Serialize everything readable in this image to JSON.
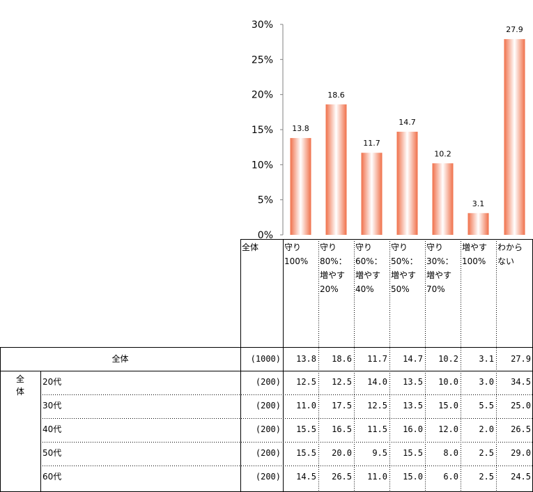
{
  "chart_data": {
    "type": "bar",
    "categories": [
      "守り\n100%",
      "守り\n80%：\n増やす\n20%",
      "守り\n60%：\n増やす\n40%",
      "守り\n50%：\n増やす\n50%",
      "守り\n30%：\n増やす\n70%",
      "増やす\n100%",
      "わから\nない"
    ],
    "values": [
      13.8,
      18.6,
      11.7,
      14.7,
      10.2,
      3.1,
      27.9
    ],
    "ylim": [
      0,
      30
    ],
    "yticks": [
      "0%",
      "5%",
      "10%",
      "15%",
      "20%",
      "25%",
      "30%"
    ],
    "value_labels": [
      "13.8",
      "18.6",
      "11.7",
      "14.7",
      "10.2",
      "3.1",
      "27.9"
    ],
    "bar_color": "#f0704a",
    "grid": false
  },
  "table": {
    "header_total": "全体",
    "group_label": "全\n体",
    "rows": [
      {
        "label": "全体",
        "n": "(1000)",
        "values": [
          "13.8",
          "18.6",
          "11.7",
          "14.7",
          "10.2",
          "3.1",
          "27.9"
        ]
      },
      {
        "label": "20代",
        "n": "(200)",
        "values": [
          "12.5",
          "12.5",
          "14.0",
          "13.5",
          "10.0",
          "3.0",
          "34.5"
        ]
      },
      {
        "label": "30代",
        "n": "(200)",
        "values": [
          "11.0",
          "17.5",
          "12.5",
          "13.5",
          "15.0",
          "5.5",
          "25.0"
        ]
      },
      {
        "label": "40代",
        "n": "(200)",
        "values": [
          "15.5",
          "16.5",
          "11.5",
          "16.0",
          "12.0",
          "2.0",
          "26.5"
        ]
      },
      {
        "label": "50代",
        "n": "(200)",
        "values": [
          "15.5",
          "20.0",
          "9.5",
          "15.5",
          "8.0",
          "2.5",
          "29.0"
        ]
      },
      {
        "label": "60代",
        "n": "(200)",
        "values": [
          "14.5",
          "26.5",
          "11.0",
          "15.0",
          "6.0",
          "2.5",
          "24.5"
        ]
      }
    ]
  }
}
